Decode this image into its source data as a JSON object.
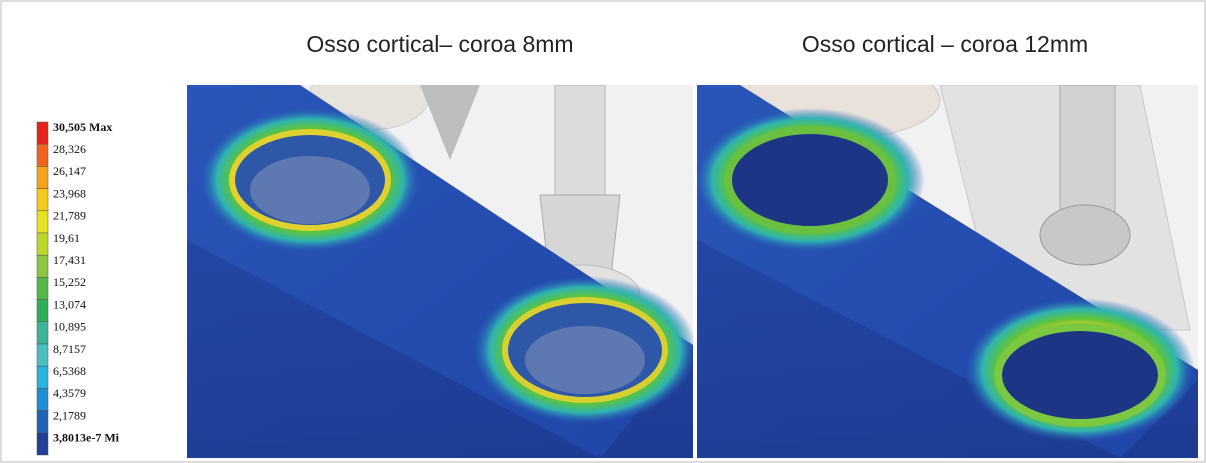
{
  "panels": [
    {
      "title": "Osso cortical– coroa 8mm"
    },
    {
      "title": "Osso cortical – coroa 12mm"
    }
  ],
  "legend": [
    {
      "label": "30,505 Max",
      "color": "#e8231c"
    },
    {
      "label": "28,326",
      "color": "#f2631d"
    },
    {
      "label": "26,147",
      "color": "#f7a21b"
    },
    {
      "label": "23,968",
      "color": "#f5cb1a"
    },
    {
      "label": "21,789",
      "color": "#e6e21d"
    },
    {
      "label": "19,61",
      "color": "#bcd82a"
    },
    {
      "label": "17,431",
      "color": "#8cc63f"
    },
    {
      "label": "15,252",
      "color": "#54b848"
    },
    {
      "label": "13,074",
      "color": "#2fae5a"
    },
    {
      "label": "10,895",
      "color": "#3ab59a"
    },
    {
      "label": "8,7157",
      "color": "#49bfc0"
    },
    {
      "label": "6,5368",
      "color": "#2bb3e0"
    },
    {
      "label": "4,3579",
      "color": "#1f8ed1"
    },
    {
      "label": "2,1789",
      "color": "#1f63b4"
    },
    {
      "label": "3,8013e-7 Mi",
      "color": "#213f98"
    }
  ]
}
